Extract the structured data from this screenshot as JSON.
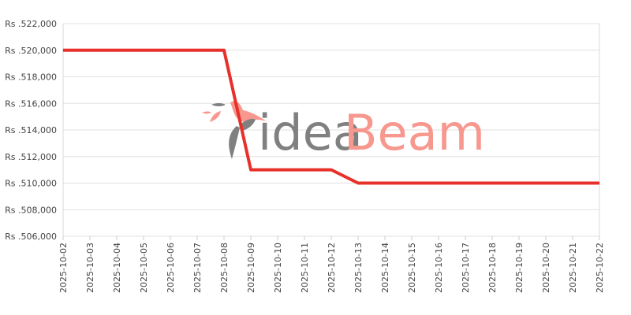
{
  "watermark": {
    "text_part1": "idea",
    "text_part2": "Beam",
    "color1": "#7a7a7a",
    "color2": "#f7938a"
  },
  "chart_data": {
    "type": "line",
    "title": "",
    "xlabel": "",
    "ylabel": "",
    "x": [
      "2025-10-02",
      "2025-10-03",
      "2025-10-04",
      "2025-10-05",
      "2025-10-06",
      "2025-10-07",
      "2025-10-08",
      "2025-10-09",
      "2025-10-10",
      "2025-10-11",
      "2025-10-12",
      "2025-10-13",
      "2025-10-14",
      "2025-10-15",
      "2025-10-16",
      "2025-10-17",
      "2025-10-18",
      "2025-10-19",
      "2025-10-20",
      "2025-10-21",
      "2025-10-22"
    ],
    "series": [
      {
        "values": [
          520000,
          520000,
          520000,
          520000,
          520000,
          520000,
          520000,
          511000,
          511000,
          511000,
          511000,
          510000,
          510000,
          510000,
          510000,
          510000,
          510000,
          510000,
          510000,
          510000,
          510000
        ],
        "color": "#e8302a"
      }
    ],
    "ylim": [
      506000,
      522000
    ],
    "yticks": [
      506000,
      508000,
      510000,
      512000,
      514000,
      516000,
      518000,
      520000,
      522000
    ],
    "ytick_labels": [
      "Rs .506,000",
      "Rs .508,000",
      "Rs .510,000",
      "Rs .512,000",
      "Rs .514,000",
      "Rs .516,000",
      "Rs .518,000",
      "Rs .520,000",
      "Rs .522,000"
    ],
    "grid": true
  }
}
